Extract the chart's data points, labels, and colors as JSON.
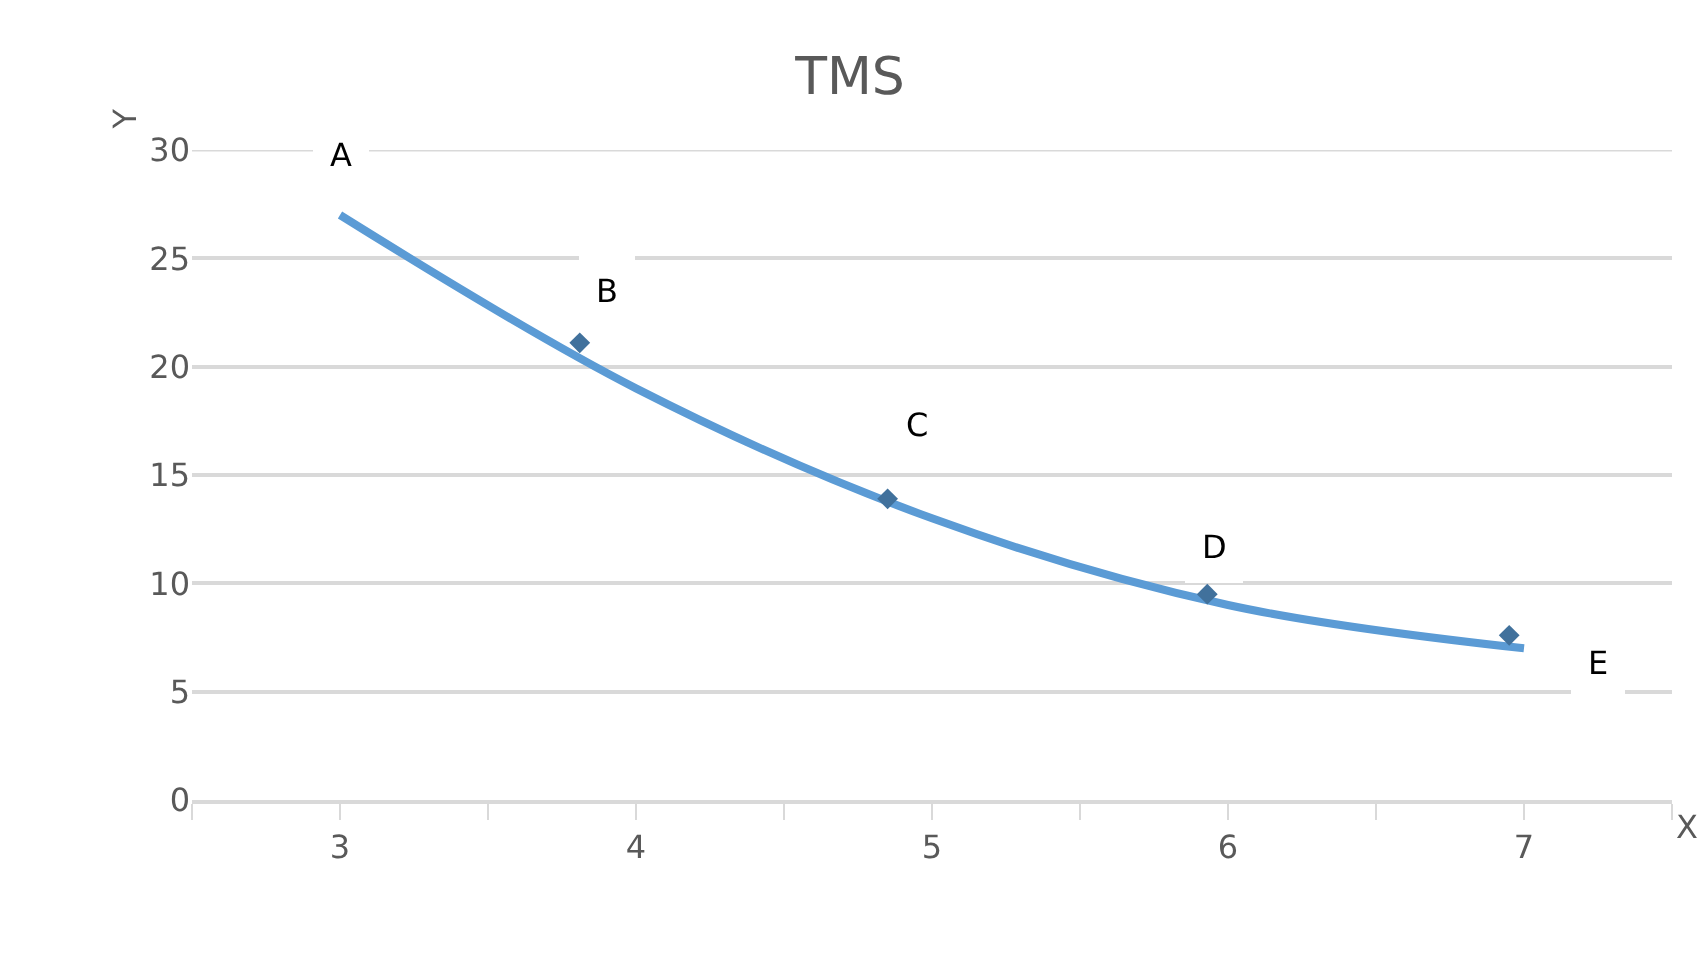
{
  "chart_data": {
    "type": "line",
    "title": "TMS",
    "xlabel": "X",
    "ylabel": "Y",
    "x": [
      3,
      4,
      5,
      6,
      7
    ],
    "series": [
      {
        "color": "#5b9bd5",
        "values": [
          27,
          19,
          13,
          9,
          7
        ],
        "marker": "none"
      },
      {
        "type": "scatter",
        "color": "#41719c",
        "x": [
          3.81,
          4.85,
          5.93,
          6.95
        ],
        "values": [
          21.1,
          13.9,
          9.5,
          7.6
        ],
        "marker": "diamond"
      }
    ],
    "xlim": [
      2.5,
      7.5
    ],
    "xticks": [
      {
        "value": 2.5,
        "label": null
      },
      3,
      {
        "value": 3.5,
        "label": null
      },
      4,
      {
        "value": 4.5,
        "label": null
      },
      5,
      {
        "value": 5.5,
        "label": null
      },
      6,
      {
        "value": 6.5,
        "label": null
      },
      7,
      {
        "value": 7.5,
        "label": null
      }
    ],
    "ylim": [
      0,
      30
    ],
    "yticks": [
      0,
      5,
      10,
      15,
      20,
      25,
      30
    ],
    "grid": "y",
    "annotations": [
      {
        "text": "A",
        "x": 3,
        "y": 29.8
      },
      {
        "text": "B",
        "x": 3.9,
        "y": 23.5
      },
      {
        "text": "C",
        "x": 4.95,
        "y": 17.3
      },
      {
        "text": "D",
        "x": 5.95,
        "y": 11.7
      },
      {
        "text": "E",
        "x": 7.25,
        "y": 6.3
      }
    ]
  }
}
